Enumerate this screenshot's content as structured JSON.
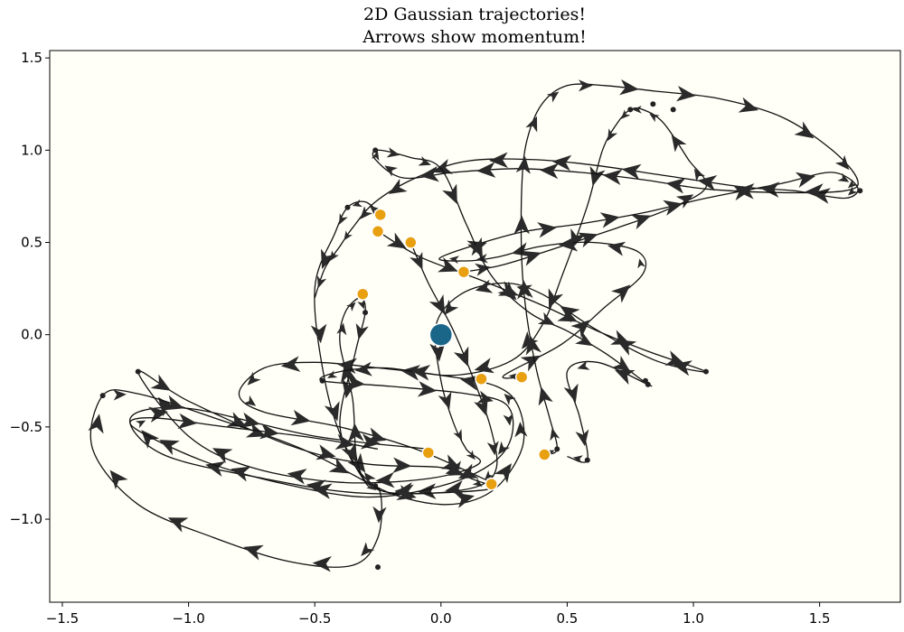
{
  "chart_data": {
    "type": "line",
    "title_line1": "2D Gaussian trajectories!",
    "title_line2": "Arrows show momentum!",
    "xlim": [
      -1.55,
      1.82
    ],
    "ylim": [
      -1.45,
      1.54
    ],
    "xticks": [
      "−1.5",
      "−1.0",
      "−0.5",
      "0.0",
      "0.5",
      "1.0",
      "1.5"
    ],
    "xtick_values": [
      -1.5,
      -1.0,
      -0.5,
      0.0,
      0.5,
      1.0,
      1.5
    ],
    "yticks": [
      "−1.0",
      "−0.5",
      "0.0",
      "0.5",
      "1.0",
      "1.5"
    ],
    "ytick_values": [
      -1.0,
      -0.5,
      0.0,
      0.5,
      1.0,
      1.5
    ],
    "grid": false,
    "colors": {
      "background": "#fffff7",
      "trajectory": "#111111",
      "arrow": "#2a2a2a",
      "start_point": "#e8a010",
      "start_point_edge": "#ffffff",
      "center": "#1a6688",
      "waypoint": "#222222"
    },
    "center_point": [
      0.0,
      0.0
    ],
    "series": [
      {
        "points": [
          [
            -0.24,
            0.65
          ],
          [
            -0.3,
            0.72
          ],
          [
            -0.37,
            0.69
          ],
          [
            -0.42,
            0.55
          ],
          [
            -0.5,
            0.25
          ],
          [
            -0.46,
            -0.25
          ],
          [
            -0.38,
            -0.6
          ],
          [
            -0.26,
            -0.82
          ],
          [
            0.0,
            -0.92
          ],
          [
            0.2,
            -0.85
          ],
          [
            0.32,
            -0.62
          ],
          [
            0.31,
            -0.4
          ],
          [
            0.22,
            -0.28
          ],
          [
            0.0,
            -0.22
          ],
          [
            -0.25,
            -0.18
          ],
          [
            -0.5,
            -0.15
          ],
          [
            -0.7,
            -0.18
          ],
          [
            -0.8,
            -0.32
          ],
          [
            -0.7,
            -0.42
          ],
          [
            -0.4,
            -0.5
          ],
          [
            -0.1,
            -0.62
          ],
          [
            0.2,
            -0.8
          ]
        ],
        "dots": [
          [
            -0.37,
            0.69
          ],
          [
            -0.26,
            -0.82
          ]
        ]
      },
      {
        "points": [
          [
            -0.25,
            0.56
          ],
          [
            -0.08,
            0.42
          ],
          [
            0.15,
            0.3
          ],
          [
            0.4,
            0.16
          ],
          [
            0.62,
            0.02
          ],
          [
            0.82,
            -0.09
          ],
          [
            1.05,
            -0.2
          ],
          [
            0.85,
            -0.14
          ],
          [
            0.6,
            0.04
          ],
          [
            0.4,
            0.22
          ],
          [
            0.25,
            0.28
          ],
          [
            0.08,
            0.22
          ],
          [
            -0.02,
            0.05
          ],
          [
            0.0,
            -0.25
          ],
          [
            0.05,
            -0.48
          ],
          [
            0.1,
            -0.62
          ],
          [
            0.15,
            -0.7
          ],
          [
            -0.05,
            -0.78
          ],
          [
            -0.4,
            -0.8
          ],
          [
            -0.75,
            -0.72
          ],
          [
            -1.0,
            -0.55
          ],
          [
            -1.2,
            -0.2
          ],
          [
            -1.0,
            -0.36
          ],
          [
            -0.6,
            -0.6
          ],
          [
            -0.3,
            -0.7
          ],
          [
            0.0,
            -0.72
          ],
          [
            0.12,
            -0.78
          ],
          [
            0.18,
            -0.84
          ],
          [
            -0.3,
            -0.86
          ],
          [
            -0.7,
            -0.78
          ],
          [
            -1.1,
            -0.65
          ],
          [
            -1.23,
            -0.45
          ],
          [
            -1.0,
            -0.4
          ],
          [
            -0.5,
            -0.55
          ],
          [
            -0.05,
            -0.62
          ]
        ],
        "dots": [
          [
            1.05,
            -0.2
          ],
          [
            -1.2,
            -0.2
          ]
        ]
      },
      {
        "points": [
          [
            -0.12,
            0.5
          ],
          [
            -0.05,
            0.28
          ],
          [
            0.05,
            0.02
          ],
          [
            0.14,
            -0.28
          ],
          [
            0.2,
            -0.52
          ],
          [
            0.22,
            -0.72
          ],
          [
            0.15,
            -0.82
          ],
          [
            -0.05,
            -0.86
          ],
          [
            -0.25,
            -0.84
          ],
          [
            -0.33,
            -0.7
          ],
          [
            -0.35,
            -0.35
          ],
          [
            -0.4,
            -0.05
          ],
          [
            -0.38,
            0.12
          ],
          [
            -0.32,
            0.2
          ],
          [
            -0.3,
            0.12
          ],
          [
            -0.34,
            -0.1
          ],
          [
            -0.4,
            -0.5
          ],
          [
            -0.3,
            -0.8
          ],
          [
            -0.24,
            -0.86
          ],
          [
            -0.25,
            -1.1
          ],
          [
            -0.35,
            -1.25
          ],
          [
            -0.6,
            -1.23
          ],
          [
            -0.9,
            -1.1
          ],
          [
            -1.2,
            -0.92
          ],
          [
            -1.38,
            -0.62
          ],
          [
            -1.34,
            -0.33
          ],
          [
            -1.2,
            -0.32
          ],
          [
            -0.9,
            -0.45
          ],
          [
            -0.55,
            -0.62
          ],
          [
            -0.24,
            -0.84
          ]
        ],
        "dots": [
          [
            -0.3,
            0.12
          ],
          [
            -0.25,
            -1.26
          ],
          [
            -1.34,
            -0.33
          ]
        ]
      },
      {
        "points": [
          [
            0.09,
            0.34
          ],
          [
            0.25,
            0.38
          ],
          [
            0.48,
            0.48
          ],
          [
            0.7,
            0.58
          ],
          [
            0.9,
            0.68
          ],
          [
            1.05,
            0.8
          ],
          [
            0.98,
            0.95
          ],
          [
            0.88,
            1.15
          ],
          [
            0.8,
            1.22
          ],
          [
            0.75,
            1.22
          ],
          [
            0.7,
            1.15
          ],
          [
            0.64,
            1.0
          ],
          [
            0.58,
            0.7
          ],
          [
            0.48,
            0.32
          ],
          [
            0.4,
            0.05
          ],
          [
            0.28,
            -0.14
          ],
          [
            0.05,
            -0.22
          ],
          [
            -0.22,
            -0.18
          ],
          [
            -0.4,
            -0.2
          ],
          [
            -0.47,
            -0.25
          ],
          [
            -0.2,
            -0.28
          ],
          [
            0.1,
            -0.32
          ],
          [
            0.26,
            -0.38
          ],
          [
            0.28,
            -0.55
          ],
          [
            0.2,
            -0.7
          ],
          [
            0.0,
            -0.82
          ],
          [
            -0.3,
            -0.88
          ],
          [
            -0.65,
            -0.8
          ],
          [
            -0.95,
            -0.68
          ],
          [
            -1.22,
            -0.5
          ],
          [
            -1.15,
            -0.45
          ],
          [
            -0.85,
            -0.5
          ],
          [
            -0.5,
            -0.56
          ],
          [
            -0.25,
            -0.62
          ]
        ],
        "dots": [
          [
            0.75,
            1.22
          ],
          [
            0.84,
            1.25
          ],
          [
            0.92,
            1.22
          ],
          [
            -0.47,
            -0.25
          ]
        ]
      },
      {
        "points": [
          [
            0.32,
            -0.23
          ],
          [
            0.25,
            -0.22
          ],
          [
            0.48,
            -0.05
          ],
          [
            0.65,
            0.15
          ],
          [
            0.8,
            0.33
          ],
          [
            0.78,
            0.45
          ],
          [
            0.6,
            0.5
          ],
          [
            0.4,
            0.48
          ],
          [
            0.22,
            0.42
          ],
          [
            0.1,
            0.4
          ],
          [
            0.0,
            0.42
          ],
          [
            0.3,
            0.55
          ],
          [
            0.55,
            0.6
          ],
          [
            0.8,
            0.66
          ],
          [
            1.05,
            0.74
          ],
          [
            1.35,
            0.82
          ],
          [
            1.55,
            0.88
          ],
          [
            1.65,
            0.8
          ],
          [
            1.6,
            0.74
          ],
          [
            1.4,
            0.78
          ],
          [
            1.2,
            0.8
          ],
          [
            0.9,
            0.86
          ],
          [
            0.6,
            0.92
          ],
          [
            0.35,
            0.95
          ],
          [
            0.1,
            0.94
          ],
          [
            -0.1,
            0.85
          ],
          [
            -0.26,
            0.72
          ],
          [
            -0.35,
            0.58
          ],
          [
            -0.4,
            0.48
          ],
          [
            -0.46,
            0.36
          ],
          [
            -0.5,
            0.2
          ]
        ],
        "dots": [
          [
            1.66,
            0.78
          ]
        ]
      },
      {
        "points": [
          [
            0.41,
            -0.65
          ],
          [
            0.46,
            -0.62
          ],
          [
            0.43,
            -0.45
          ],
          [
            0.38,
            -0.2
          ],
          [
            0.34,
            0.1
          ],
          [
            0.32,
            0.4
          ],
          [
            0.32,
            0.8
          ],
          [
            0.34,
            1.05
          ],
          [
            0.4,
            1.25
          ],
          [
            0.5,
            1.35
          ],
          [
            0.65,
            1.35
          ],
          [
            0.85,
            1.32
          ],
          [
            1.1,
            1.28
          ],
          [
            1.35,
            1.18
          ],
          [
            1.55,
            1.0
          ],
          [
            1.65,
            0.84
          ],
          [
            1.6,
            0.78
          ],
          [
            1.35,
            0.77
          ],
          [
            1.05,
            0.79
          ],
          [
            0.8,
            0.84
          ],
          [
            0.55,
            0.88
          ],
          [
            0.3,
            0.9
          ],
          [
            0.05,
            0.88
          ],
          [
            -0.15,
            0.85
          ],
          [
            -0.26,
            0.95
          ],
          [
            -0.25,
            1.0
          ],
          [
            -0.12,
            0.96
          ],
          [
            0.0,
            0.9
          ],
          [
            0.1,
            0.6
          ],
          [
            0.2,
            0.32
          ],
          [
            0.35,
            0.12
          ],
          [
            0.5,
            0.02
          ],
          [
            0.65,
            -0.1
          ],
          [
            0.8,
            -0.25
          ],
          [
            0.82,
            -0.27
          ],
          [
            0.62,
            -0.15
          ],
          [
            0.5,
            -0.2
          ],
          [
            0.55,
            -0.45
          ],
          [
            0.58,
            -0.68
          ],
          [
            0.5,
            -0.66
          ]
        ],
        "dots": [
          [
            -0.26,
            1.0
          ],
          [
            0.82,
            -0.27
          ],
          [
            0.81,
            -0.25
          ],
          [
            0.58,
            -0.68
          ],
          [
            0.46,
            -0.62
          ]
        ]
      }
    ],
    "start_points": [
      [
        -0.24,
        0.65
      ],
      [
        -0.25,
        0.56
      ],
      [
        -0.12,
        0.5
      ],
      [
        0.09,
        0.34
      ],
      [
        -0.31,
        0.22
      ],
      [
        0.16,
        -0.24
      ],
      [
        0.32,
        -0.23
      ],
      [
        -0.05,
        -0.64
      ],
      [
        0.41,
        -0.65
      ],
      [
        0.2,
        -0.81
      ]
    ]
  }
}
